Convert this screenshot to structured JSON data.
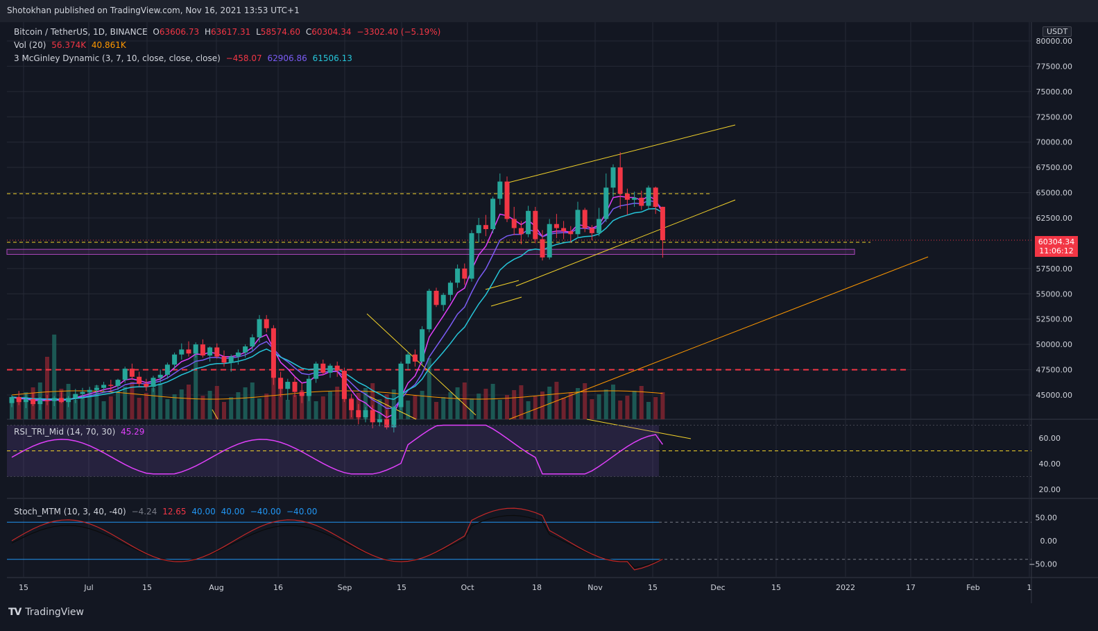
{
  "header": {
    "published": "Shotokhan published on TradingView.com, Nov 16, 2021 13:53 UTC+1"
  },
  "legend": {
    "symbol": "Bitcoin / TetherUS, 1D, BINANCE",
    "o_label": "O",
    "o_value": "63606.73",
    "h_label": "H",
    "h_value": "63617.31",
    "l_label": "L",
    "l_value": "58574.60",
    "c_label": "C",
    "c_value": "60304.34",
    "change": "−3302.40 (−5.19%)",
    "vol_label": "Vol (20)",
    "vol_value1": "56.374K",
    "vol_value2": "40.861K",
    "mcg_label": "3 McGinley Dynamic (3, 7, 10, close, close, close)",
    "mcg_value1": "−458.07",
    "mcg_value2": "62906.86",
    "mcg_value3": "61506.13",
    "rsi_label": "RSI_TRI_Mid (14, 70, 30)",
    "rsi_value": "45.29",
    "stoch_label": "Stoch_MTM (10, 3, 40, -40)",
    "stoch_value1": "−4.24",
    "stoch_value2": "12.65",
    "stoch_value3": "40.00",
    "stoch_value4": "40.00",
    "stoch_value5": "−40.00",
    "stoch_value6": "−40.00"
  },
  "price_axis": {
    "currency": "USDT",
    "ticks": [
      "80000.00",
      "77500.00",
      "75000.00",
      "72500.00",
      "70000.00",
      "67500.00",
      "65000.00",
      "62500.00",
      "57500.00",
      "55000.00",
      "52500.00",
      "50000.00",
      "47500.00",
      "45000.00"
    ],
    "last_price": "60304.34",
    "countdown": "11:06:12"
  },
  "rsi_axis": {
    "ticks": [
      "60.00",
      "40.00",
      "20.00"
    ]
  },
  "stoch_axis": {
    "ticks": [
      "50.00",
      "0.00",
      "−50.00"
    ]
  },
  "time_axis": {
    "ticks": [
      "15",
      "Jul",
      "15",
      "Aug",
      "16",
      "Sep",
      "15",
      "Oct",
      "18",
      "Nov",
      "15",
      "Dec",
      "15",
      "2022",
      "17",
      "Feb",
      "1"
    ]
  },
  "footer": {
    "brand": "TradingView"
  },
  "colors": {
    "up": "#26a69a",
    "down": "#f23645",
    "trendline": "#f5d42a",
    "support": "#ff9800",
    "mcg_fast": "#7b5cf5",
    "mcg_slow": "#26c6da",
    "rsi": "#e040fb",
    "zone": "#ab47bc"
  },
  "chart_data": {
    "type": "candlestick",
    "title": "Bitcoin / TetherUS, 1D, BINANCE",
    "ylim": [
      44000,
      80000
    ],
    "last_close": 60304.34,
    "levels": {
      "dashed_yellow_upper": 64900,
      "dashed_yellow_lower": 60100,
      "dashed_red": 47500,
      "zone": [
        58900,
        59400
      ]
    },
    "candles": [
      [
        0,
        44200,
        45000,
        43800,
        44800
      ],
      [
        1,
        44800,
        45400,
        44000,
        44300
      ],
      [
        2,
        44300,
        45100,
        43700,
        44600
      ],
      [
        3,
        44600,
        45200,
        43900,
        44100
      ],
      [
        4,
        44100,
        44800,
        43500,
        44500
      ],
      [
        5,
        44500,
        45000,
        44000,
        44400
      ],
      [
        6,
        44400,
        44900,
        43900,
        44700
      ],
      [
        7,
        44700,
        45300,
        44200,
        44300
      ],
      [
        8,
        44300,
        44900,
        43800,
        44700
      ],
      [
        9,
        44700,
        45600,
        44200,
        45100
      ],
      [
        10,
        45100,
        45700,
        44600,
        45300
      ],
      [
        11,
        45300,
        45800,
        44900,
        45500
      ],
      [
        12,
        45500,
        46000,
        45000,
        45700
      ],
      [
        13,
        45700,
        46300,
        45200,
        46000
      ],
      [
        14,
        46000,
        46500,
        45400,
        45900
      ],
      [
        15,
        45900,
        46600,
        45500,
        46500
      ],
      [
        16,
        46500,
        47800,
        46200,
        47600
      ],
      [
        17,
        47600,
        48100,
        46500,
        46800
      ],
      [
        18,
        46800,
        47300,
        45800,
        46100
      ],
      [
        19,
        46100,
        46600,
        45400,
        45800
      ],
      [
        20,
        45800,
        46900,
        45300,
        46700
      ],
      [
        21,
        46700,
        47500,
        46200,
        47000
      ],
      [
        22,
        47000,
        48200,
        46600,
        48000
      ],
      [
        23,
        48000,
        49200,
        47500,
        49000
      ],
      [
        24,
        49000,
        50100,
        48500,
        49500
      ],
      [
        25,
        49500,
        50300,
        48800,
        49100
      ],
      [
        26,
        49100,
        50200,
        48700,
        50000
      ],
      [
        27,
        50000,
        50500,
        48700,
        48900
      ],
      [
        28,
        48900,
        49800,
        48300,
        49700
      ],
      [
        29,
        49700,
        50100,
        48600,
        48800
      ],
      [
        30,
        48800,
        49400,
        47800,
        48200
      ],
      [
        31,
        48200,
        49000,
        47300,
        48800
      ],
      [
        32,
        48800,
        49500,
        48000,
        49200
      ],
      [
        33,
        49200,
        50000,
        48700,
        49800
      ],
      [
        34,
        49800,
        51000,
        49300,
        50700
      ],
      [
        35,
        50700,
        52900,
        50200,
        52500
      ],
      [
        36,
        52500,
        52900,
        51200,
        51600
      ],
      [
        37,
        51600,
        51900,
        46000,
        46700
      ],
      [
        38,
        46700,
        47300,
        44800,
        45600
      ],
      [
        39,
        45600,
        46600,
        44500,
        46300
      ],
      [
        40,
        46300,
        46800,
        44800,
        45300
      ],
      [
        41,
        45300,
        46200,
        44200,
        44900
      ],
      [
        42,
        44900,
        46900,
        44400,
        46600
      ],
      [
        43,
        46600,
        48300,
        46200,
        48100
      ],
      [
        44,
        48100,
        48500,
        47000,
        47200
      ],
      [
        45,
        47200,
        48100,
        46700,
        47900
      ],
      [
        46,
        47900,
        48300,
        46800,
        47400
      ],
      [
        47,
        47400,
        47700,
        44300,
        44600
      ],
      [
        48,
        44600,
        45100,
        42800,
        43500
      ],
      [
        49,
        43500,
        44100,
        42100,
        42800
      ],
      [
        50,
        42800,
        43800,
        42300,
        43500
      ],
      [
        51,
        43500,
        44000,
        41700,
        42300
      ],
      [
        52,
        42300,
        43100,
        41900,
        42600
      ],
      [
        53,
        42600,
        43500,
        41600,
        41800
      ],
      [
        54,
        41800,
        43900,
        41300,
        43800
      ],
      [
        55,
        43800,
        48300,
        43500,
        48100
      ],
      [
        56,
        48100,
        49300,
        47500,
        49000
      ],
      [
        57,
        49000,
        49500,
        47800,
        48300
      ],
      [
        58,
        48300,
        51800,
        48000,
        51500
      ],
      [
        59,
        51500,
        55500,
        51200,
        55300
      ],
      [
        60,
        55300,
        55600,
        53700,
        53900
      ],
      [
        61,
        53900,
        55100,
        53300,
        54900
      ],
      [
        62,
        54900,
        56300,
        54300,
        56100
      ],
      [
        63,
        56100,
        57900,
        55600,
        57500
      ],
      [
        64,
        57500,
        58000,
        55900,
        56500
      ],
      [
        65,
        56500,
        61300,
        56200,
        61000
      ],
      [
        66,
        61000,
        62500,
        60100,
        61800
      ],
      [
        67,
        61800,
        62800,
        60700,
        61400
      ],
      [
        68,
        61400,
        64600,
        61000,
        64400
      ],
      [
        69,
        64400,
        66900,
        63800,
        66100
      ],
      [
        70,
        66100,
        66600,
        62100,
        62400
      ],
      [
        71,
        62400,
        63600,
        60800,
        61500
      ],
      [
        72,
        61500,
        62200,
        59900,
        60900
      ],
      [
        73,
        60900,
        63700,
        60600,
        63200
      ],
      [
        74,
        63200,
        63600,
        60000,
        60400
      ],
      [
        75,
        60400,
        61300,
        58300,
        58600
      ],
      [
        76,
        58600,
        62400,
        58400,
        61900
      ],
      [
        77,
        61900,
        62900,
        60500,
        61500
      ],
      [
        78,
        61500,
        62200,
        60400,
        61200
      ],
      [
        79,
        61200,
        61700,
        60100,
        60900
      ],
      [
        80,
        60900,
        64100,
        60500,
        63300
      ],
      [
        81,
        63300,
        63500,
        61100,
        61500
      ],
      [
        82,
        61500,
        61800,
        60300,
        61000
      ],
      [
        83,
        61000,
        63500,
        60700,
        62400
      ],
      [
        84,
        62400,
        66900,
        62100,
        65500
      ],
      [
        85,
        65500,
        67800,
        64600,
        67500
      ],
      [
        86,
        67500,
        69000,
        63400,
        64900
      ],
      [
        87,
        64900,
        65400,
        62800,
        64300
      ],
      [
        88,
        64300,
        65100,
        63600,
        64500
      ],
      [
        89,
        64500,
        65200,
        63300,
        63700
      ],
      [
        90,
        63700,
        65700,
        63300,
        65500
      ],
      [
        91,
        65500,
        65600,
        62900,
        63600
      ],
      [
        92,
        63600,
        63617,
        58574,
        60304
      ]
    ]
  }
}
